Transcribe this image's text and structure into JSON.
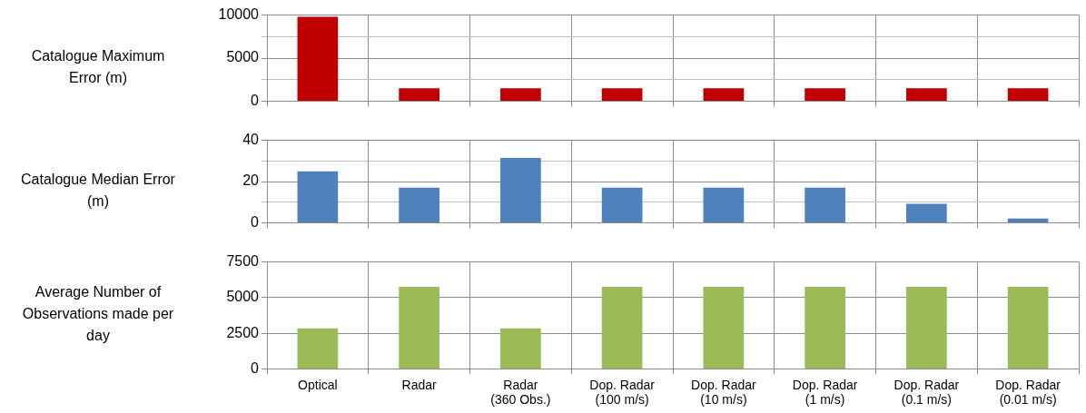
{
  "chart_data": [
    {
      "type": "bar",
      "ylabel": "Catalogue Maximum Error (m)",
      "categories": [
        null,
        null,
        null,
        null,
        null,
        null,
        null,
        null
      ],
      "values": [
        9800,
        1500,
        1500,
        1500,
        1500,
        1500,
        1500,
        1500
      ],
      "color": "#c00000",
      "ylim": [
        0,
        10000
      ],
      "yticks": [
        0,
        {
          "value": 2500,
          "label": null
        },
        5000,
        {
          "value": 7500,
          "label": null
        },
        10000
      ],
      "grid": true,
      "tick_labels": "y"
    },
    {
      "type": "bar",
      "ylabel": "Catalogue Median Error (m)",
      "categories": [
        null,
        null,
        null,
        null,
        null,
        null,
        null,
        null
      ],
      "values": [
        25,
        17,
        31.5,
        17,
        17,
        17,
        9.2,
        2
      ],
      "color": "#4f81bd",
      "ylim": [
        0,
        40
      ],
      "yticks": [
        0,
        {
          "value": 10,
          "label": null
        },
        20,
        {
          "value": 30,
          "label": null
        },
        40
      ],
      "grid": true,
      "tick_labels": "y"
    },
    {
      "type": "bar",
      "ylabel": "Average Number of Observations made per day",
      "categories": [
        "Optical",
        "Radar",
        "Radar (360 Obs.)",
        "Dop. Radar (100 m/s)",
        "Dop. Radar (10 m/s)",
        "Dop. Radar (1 m/s)",
        "Dop. Radar (0.1 m/s)",
        "Dop. Radar (0.01 m/s)"
      ],
      "values": [
        2850,
        5750,
        2850,
        5750,
        5750,
        5750,
        5750,
        5750
      ],
      "color": "#9bbb59",
      "ylim": [
        0,
        7500
      ],
      "yticks": [
        0,
        2500,
        5000,
        7500
      ],
      "grid": true
    }
  ]
}
